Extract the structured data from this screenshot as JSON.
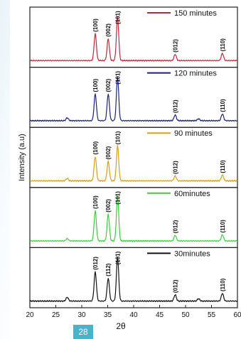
{
  "page": {
    "number": "28"
  },
  "chart_data": {
    "type": "line",
    "stacked": true,
    "xlabel": "2θ",
    "ylabel": "Intensity (a.u)",
    "xlim": [
      20,
      60
    ],
    "x_ticks": [
      "20",
      "25",
      "30",
      "35",
      "40",
      "45",
      "50",
      "55",
      "60"
    ],
    "grid": false,
    "legend_position": "top-right of each panel",
    "series": [
      {
        "name": "150 minutes",
        "color": "#c0283c",
        "peaks": [
          {
            "x": 32.6,
            "height": 0.55,
            "label": "(100)"
          },
          {
            "x": 35.1,
            "height": 0.45,
            "label": "(002)"
          },
          {
            "x": 36.9,
            "height": 0.9,
            "label": "(101)"
          },
          {
            "x": 48.0,
            "height": 0.13,
            "label": "(012)"
          },
          {
            "x": 57.1,
            "height": 0.15,
            "label": "(110)"
          }
        ]
      },
      {
        "name": "120 minutes",
        "color": "#1a237e",
        "peaks": [
          {
            "x": 27.2,
            "height": 0.06,
            "label": ""
          },
          {
            "x": 32.6,
            "height": 0.55,
            "label": "(100)"
          },
          {
            "x": 35.1,
            "height": 0.55,
            "label": "(002)"
          },
          {
            "x": 36.9,
            "height": 0.9,
            "label": "(101)"
          },
          {
            "x": 48.0,
            "height": 0.12,
            "label": "(012)"
          },
          {
            "x": 52.5,
            "height": 0.04,
            "label": ""
          },
          {
            "x": 57.1,
            "height": 0.14,
            "label": "(110)"
          }
        ]
      },
      {
        "name": "90 minutes",
        "color": "#d4a017",
        "peaks": [
          {
            "x": 27.2,
            "height": 0.05,
            "label": ""
          },
          {
            "x": 32.6,
            "height": 0.5,
            "label": "(100)"
          },
          {
            "x": 35.1,
            "height": 0.4,
            "label": "(002)"
          },
          {
            "x": 36.9,
            "height": 0.72,
            "label": "(101)"
          },
          {
            "x": 48.0,
            "height": 0.1,
            "label": "(012)"
          },
          {
            "x": 57.1,
            "height": 0.12,
            "label": "(110)"
          }
        ]
      },
      {
        "name": "60minutes",
        "color": "#3ccc3c",
        "peaks": [
          {
            "x": 27.2,
            "height": 0.05,
            "label": ""
          },
          {
            "x": 32.6,
            "height": 0.62,
            "label": "(100)"
          },
          {
            "x": 35.1,
            "height": 0.55,
            "label": "(002)"
          },
          {
            "x": 36.9,
            "height": 0.92,
            "label": "(101)"
          },
          {
            "x": 48.0,
            "height": 0.12,
            "label": "(012)"
          },
          {
            "x": 57.1,
            "height": 0.13,
            "label": "(110)"
          }
        ]
      },
      {
        "name": "30minutes",
        "color": "#111111",
        "peaks": [
          {
            "x": 27.2,
            "height": 0.08,
            "label": ""
          },
          {
            "x": 32.6,
            "height": 0.6,
            "label": "(012)"
          },
          {
            "x": 35.1,
            "height": 0.47,
            "label": "(112)"
          },
          {
            "x": 36.9,
            "height": 0.9,
            "label": "(101)"
          },
          {
            "x": 48.0,
            "height": 0.13,
            "label": "(012)"
          },
          {
            "x": 52.5,
            "height": 0.05,
            "label": ""
          },
          {
            "x": 57.1,
            "height": 0.16,
            "label": "(110)"
          }
        ]
      }
    ]
  }
}
